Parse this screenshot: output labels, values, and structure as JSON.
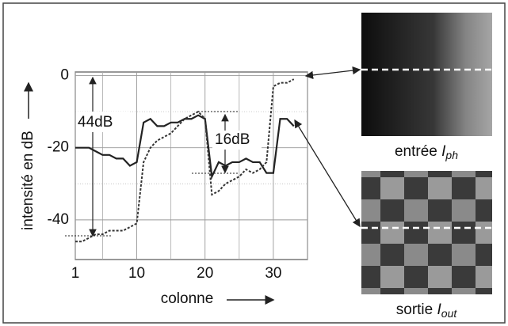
{
  "chart_data": {
    "type": "line",
    "xlabel": "colonne",
    "ylabel": "intensité en dB",
    "x": [
      1,
      2,
      3,
      4,
      5,
      6,
      7,
      8,
      9,
      10,
      11,
      12,
      13,
      14,
      15,
      16,
      17,
      18,
      19,
      20,
      21,
      22,
      23,
      24,
      25,
      26,
      27,
      28,
      29,
      30,
      31,
      32,
      33
    ],
    "series": [
      {
        "color": "#222222",
        "style": "solid",
        "values": [
          -20,
          -20,
          -20,
          -21,
          -22,
          -22,
          -23,
          -23,
          -25,
          -24,
          -13,
          -12,
          -14,
          -14,
          -13,
          -13,
          -12,
          -12,
          -11,
          -12,
          -28,
          -24,
          -25,
          -24,
          -24,
          -23,
          -24,
          -24,
          -27,
          -27,
          -12,
          -12,
          -14
        ]
      },
      {
        "color": "#333333",
        "style": "dashed",
        "values": [
          -46,
          -46,
          -45,
          -44,
          -44,
          -43,
          -43,
          -43,
          -42,
          -41,
          -24,
          -20,
          -18,
          -17,
          -16,
          -14,
          -12,
          -11,
          -10,
          -12,
          -33,
          -32,
          -30,
          -29,
          -28,
          -26,
          -27,
          -26,
          -24,
          -3,
          -2,
          -2,
          -1
        ]
      }
    ],
    "xlim": [
      1,
      35
    ],
    "ylim": [
      -51,
      1
    ],
    "xticks": [
      1,
      10,
      20,
      30
    ],
    "yticks": [
      0,
      -20,
      -40
    ],
    "xgrid": [
      5,
      15,
      25,
      35
    ],
    "ygrid": [
      -10,
      -30
    ],
    "grid": true,
    "annotations": [
      "44dB",
      "16dB"
    ],
    "insets": [
      {
        "label": "entrée",
        "symbol": "I",
        "subscript": "ph"
      },
      {
        "label": "sortie",
        "symbol": "I",
        "subscript": "out"
      }
    ]
  }
}
